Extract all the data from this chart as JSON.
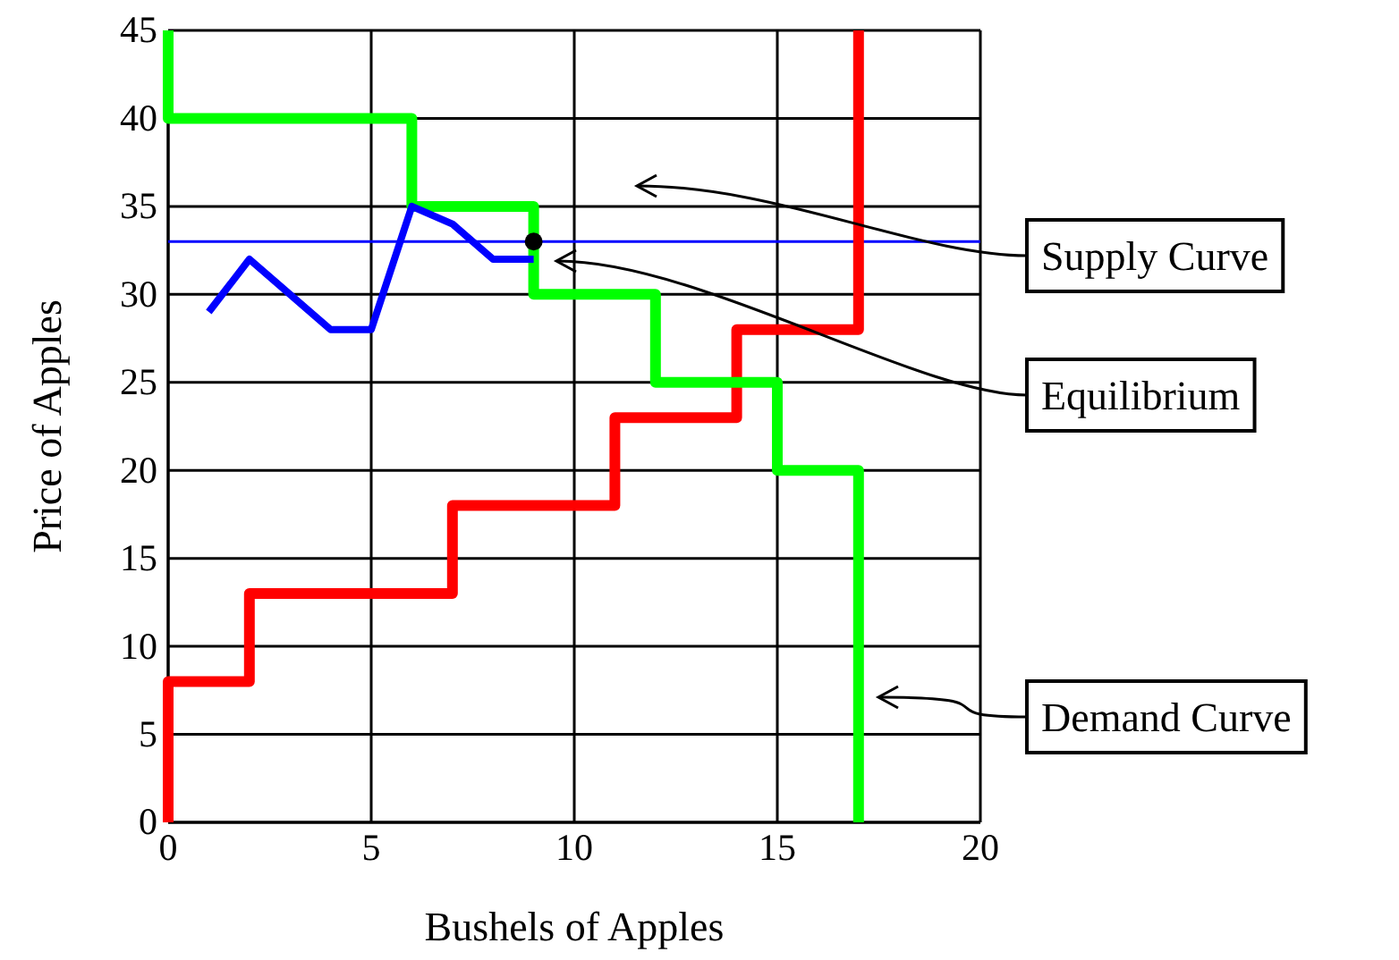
{
  "chart_data": {
    "type": "line",
    "xlabel": "Bushels of Apples",
    "ylabel": "Price of Apples",
    "xlim": [
      0,
      20
    ],
    "ylim": [
      0,
      45
    ],
    "xticks": [
      0,
      5,
      10,
      15,
      20
    ],
    "yticks": [
      0,
      5,
      10,
      15,
      20,
      25,
      30,
      35,
      40,
      45
    ],
    "grid": true,
    "series": [
      {
        "type": "step",
        "color": "#ff0000",
        "x": [
          0,
          0,
          2,
          7,
          11,
          14,
          17
        ],
        "values": [
          0,
          8,
          13,
          18,
          23,
          28,
          45
        ]
      },
      {
        "type": "step",
        "color": "#00ff00",
        "x": [
          0,
          0,
          6,
          9,
          12,
          15,
          17
        ],
        "values": [
          45,
          40,
          35,
          30,
          25,
          20,
          0
        ]
      },
      {
        "color": "#0000ff",
        "x": [
          1,
          2,
          4,
          5,
          6,
          7,
          8,
          9
        ],
        "values": [
          29,
          32,
          28,
          28,
          35,
          34,
          32,
          32
        ]
      },
      {
        "type": "scatter",
        "color": "#000000",
        "x": [
          9
        ],
        "values": [
          33
        ]
      }
    ],
    "ref_lines": [
      {
        "axis": "y",
        "value": 33,
        "color": "#0000ff"
      }
    ],
    "annotations": [
      "Supply Curve",
      "Equilibrium",
      "Demand Curve"
    ]
  }
}
